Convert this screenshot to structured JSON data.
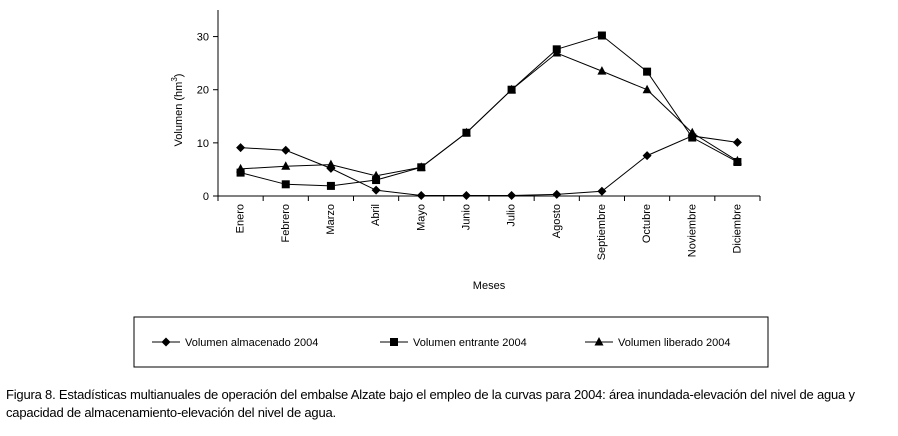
{
  "chart_data": {
    "type": "line",
    "categories": [
      "Enero",
      "Febrero",
      "Marzo",
      "Abril",
      "Mayo",
      "Junio",
      "Julio",
      "Agosto",
      "Septiembre",
      "Octubre",
      "Noviembre",
      "Diciembre"
    ],
    "series": [
      {
        "name": "Volumen almacenado 2004",
        "marker": "diamond",
        "values": [
          9.1,
          8.6,
          5.2,
          1.1,
          0.1,
          0.1,
          0.1,
          0.3,
          0.9,
          7.6,
          11.3,
          10.1
        ]
      },
      {
        "name": "Volumen entrante 2004",
        "marker": "square",
        "values": [
          4.4,
          2.2,
          1.9,
          3.0,
          5.4,
          11.9,
          20.0,
          27.6,
          30.2,
          23.4,
          11.0,
          6.4
        ]
      },
      {
        "name": "Volumen liberado 2004",
        "marker": "triangle",
        "values": [
          5.1,
          5.6,
          5.9,
          3.8,
          5.4,
          11.9,
          20.0,
          26.9,
          23.5,
          20.0,
          11.9,
          6.6
        ]
      }
    ],
    "xlabel": "Meses",
    "ylabel_main": "Volumen  (hm",
    "ylabel_sup": "3",
    "ylabel_close": ")",
    "ylim": [
      0,
      35
    ],
    "yticks": [
      0,
      10,
      20,
      30
    ],
    "legend_position": "bottom",
    "grid": false
  },
  "caption": "Figura 8.  Estadísticas multianuales de operación del embalse Alzate bajo el empleo de la curvas para 2004:  área inundada-elevación del nivel de agua y capacidad de almacenamiento-elevación del nivel de agua."
}
